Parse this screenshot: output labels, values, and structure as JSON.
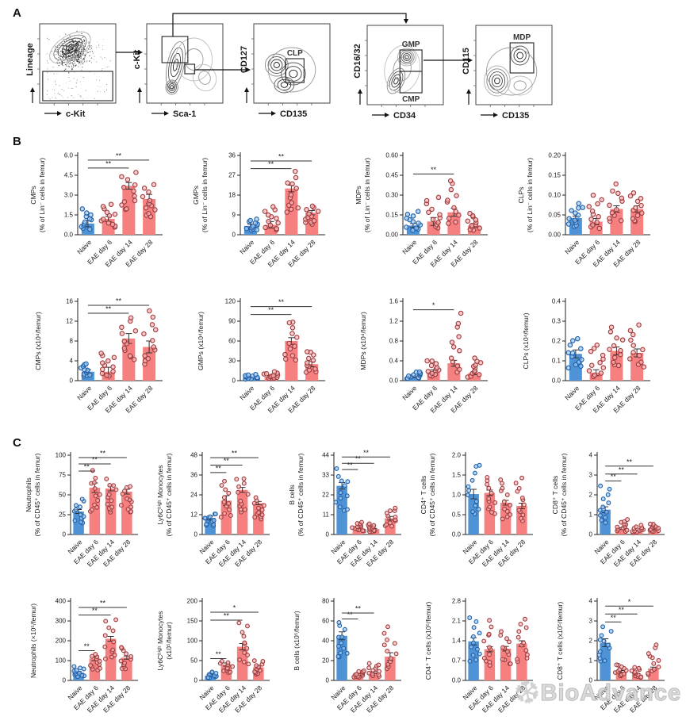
{
  "panels": {
    "a": "A",
    "b": "B",
    "c": "C"
  },
  "watermark": {
    "text": "BioAdvance",
    "flake_icon": "snowflake"
  },
  "flow_panel": {
    "plots": [
      {
        "ylabel": "Lineage",
        "xlabel": "c-Kit",
        "gates": [
          {
            "label": ""
          }
        ]
      },
      {
        "ylabel": "c-Kit",
        "xlabel": "Sca-1",
        "gates": [
          {
            "label": ""
          },
          {
            "label": ""
          }
        ]
      },
      {
        "ylabel": "CD127",
        "xlabel": "CD135",
        "gates": [
          {
            "label": "CLP"
          }
        ]
      },
      {
        "ylabel": "CD16/32",
        "xlabel": "CD34",
        "gates": [
          {
            "label": "GMP"
          },
          {
            "label": "CMP"
          }
        ]
      },
      {
        "ylabel": "CD115",
        "xlabel": "CD135",
        "gates": [
          {
            "label": "MDP"
          }
        ]
      }
    ]
  },
  "chart_data": {
    "type": "bar",
    "categories": [
      "Naive",
      "EAE day 6",
      "EAE day 14",
      "EAE day 28"
    ],
    "colors": {
      "naive_bar": "#4f93d7",
      "naive_dot": "#1f5fa8",
      "naive_dot_fill": "#9cc6ee",
      "eae_bar": "#f67f7f",
      "eae_dot": "#9e3b3e",
      "eae_dot_fill": "#f9b4b4"
    },
    "rows": [
      {
        "panel": "B",
        "size": "b",
        "charts": [
          {
            "name": "cmps-pct",
            "ylabel": [
              "CMPs",
              "(% of Lin⁻ cells in femur)"
            ],
            "ymax": 6,
            "yticks": [
              "0.0",
              "1.5",
              "3.0",
              "4.5",
              "6.0"
            ],
            "means": [
              0.85,
              1.2,
              3.7,
              2.7
            ],
            "errs": [
              0.25,
              0.2,
              0.25,
              0.35
            ],
            "his": [
              1.9,
              2.3,
              4.7,
              3.8
            ],
            "sig": [
              {
                "to": 2,
                "label": "**",
                "y": 5.05
              },
              {
                "to": 3,
                "label": "**",
                "y": 5.65
              }
            ]
          },
          {
            "name": "gmps-pct",
            "ylabel": [
              "GMPs",
              "(% of Lin⁻ cells in femur)"
            ],
            "ymax": 36,
            "yticks": [
              "0",
              "9",
              "18",
              "27",
              "36"
            ],
            "means": [
              4,
              4.5,
              21,
              10
            ],
            "errs": [
              0.8,
              1.5,
              1.5,
              1
            ],
            "his": [
              7,
              13,
              28,
              13
            ],
            "sig": [
              {
                "to": 2,
                "label": "**",
                "y": 30
              },
              {
                "to": 3,
                "label": "**",
                "y": 33.5
              }
            ]
          },
          {
            "name": "mdps-pct",
            "ylabel": [
              "MDPs",
              "(% of Lin⁻ cells in femur)"
            ],
            "ymax": 0.6,
            "yticks": [
              "0.00",
              "0.15",
              "0.30",
              "0.45",
              "0.60"
            ],
            "means": [
              0.07,
              0.1,
              0.17,
              0.07
            ],
            "errs": [
              0.015,
              0.03,
              0.03,
              0.012
            ],
            "his": [
              0.17,
              0.28,
              0.42,
              0.16
            ],
            "sig": [
              {
                "to": 2,
                "label": "**",
                "y": 0.46
              }
            ]
          },
          {
            "name": "clps-pct",
            "ylabel": [
              "CLPs",
              "(% of Lin⁻ cells in femur)"
            ],
            "ymax": 0.2,
            "yticks": [
              "0.00",
              "0.05",
              "0.10",
              "0.15",
              "0.20"
            ],
            "means": [
              0.042,
              0.033,
              0.065,
              0.065
            ],
            "errs": [
              0.005,
              0.008,
              0.008,
              0.008
            ],
            "his": [
              0.078,
              0.095,
              0.125,
              0.11
            ],
            "sig": []
          }
        ]
      },
      {
        "panel": "B",
        "size": "b",
        "charts": [
          {
            "name": "cmps-abs",
            "ylabel": [
              "CMPs (x10⁴/femur)"
            ],
            "ymax": 16,
            "yticks": [
              "0",
              "4",
              "8",
              "12",
              "16"
            ],
            "means": [
              1.8,
              1.8,
              8.5,
              6.8
            ],
            "errs": [
              0.4,
              0.9,
              1.0,
              1.2
            ],
            "his": [
              3.5,
              5.8,
              13,
              13.5
            ],
            "sig": [
              {
                "to": 2,
                "label": "**",
                "y": 13.6
              },
              {
                "to": 3,
                "label": "**",
                "y": 15.2
              }
            ]
          },
          {
            "name": "gmps-abs",
            "ylabel": [
              "GMPs (x10⁴/femur)"
            ],
            "ymax": 120,
            "yticks": [
              "0",
              "30",
              "60",
              "90",
              "120"
            ],
            "means": [
              5,
              6,
              60,
              25
            ],
            "errs": [
              1,
              1.5,
              5,
              4
            ],
            "his": [
              9,
              13,
              92,
              45
            ],
            "sig": [
              {
                "to": 2,
                "label": "**",
                "y": 100
              },
              {
                "to": 3,
                "label": "**",
                "y": 112
              }
            ]
          },
          {
            "name": "mdps-abs",
            "ylabel": [
              "MDPs (x10⁴/femur)"
            ],
            "ymax": 1.6,
            "yticks": [
              "0.0",
              "0.4",
              "0.8",
              "1.2",
              "1.6"
            ],
            "means": [
              0.08,
              0.18,
              0.35,
              0.15
            ],
            "errs": [
              0.02,
              0.04,
              0.06,
              0.03
            ],
            "his": [
              0.18,
              0.42,
              1.3,
              0.45
            ],
            "sig": [
              {
                "to": 2,
                "label": "*",
                "y": 1.43
              }
            ]
          },
          {
            "name": "clps-abs",
            "ylabel": [
              "CLPs (x10⁴/femur)"
            ],
            "ymax": 0.4,
            "yticks": [
              "0.0",
              "0.1",
              "0.2",
              "0.3",
              "0.4"
            ],
            "means": [
              0.135,
              0.04,
              0.15,
              0.14
            ],
            "errs": [
              0.02,
              0.015,
              0.02,
              0.02
            ],
            "his": [
              0.21,
              0.18,
              0.27,
              0.27
            ],
            "sig": []
          }
        ]
      },
      {
        "panel": "C",
        "size": "c",
        "charts": [
          {
            "name": "neutrophils-pct",
            "ylabel": [
              "Neutrophils",
              "(% of CD45⁺ cells in femur)"
            ],
            "ymax": 100,
            "yticks": [
              "0",
              "25",
              "50",
              "75",
              "100"
            ],
            "means": [
              29,
              59,
              58,
              54
            ],
            "errs": [
              2.5,
              6,
              3,
              3
            ],
            "his": [
              45,
              78,
              68,
              62
            ],
            "sig": [
              {
                "to": 1,
                "label": "**",
                "y": 80
              },
              {
                "to": 2,
                "label": "**",
                "y": 89
              },
              {
                "to": 3,
                "label": "**",
                "y": 97
              }
            ]
          },
          {
            "name": "ly6chigh-monocytes-pct",
            "ylabel": [
              "Ly6Cʰⁱᵍʰ Monocytes",
              "(% of CD45⁺ cells in femur)"
            ],
            "ymax": 48,
            "yticks": [
              "0",
              "12",
              "24",
              "36",
              "48"
            ],
            "means": [
              10,
              20.5,
              27,
              19
            ],
            "errs": [
              1.2,
              3,
              1.5,
              1
            ],
            "his": [
              13,
              33,
              35,
              22
            ],
            "sig": [
              {
                "to": 1,
                "label": "**",
                "y": 37.5
              },
              {
                "to": 2,
                "label": "**",
                "y": 42
              },
              {
                "to": 3,
                "label": "**",
                "y": 46.5
              }
            ]
          },
          {
            "name": "b-cells-pct",
            "ylabel": [
              "B cells",
              "(% of CD45⁺ cells in femur)"
            ],
            "ymax": 44,
            "yticks": [
              "0",
              "11",
              "22",
              "33",
              "44"
            ],
            "means": [
              27,
              4,
              3,
              9
            ],
            "errs": [
              1.8,
              0.5,
              0.4,
              1
            ],
            "his": [
              36,
              7,
              6,
              15
            ],
            "sig": [
              {
                "to": 1,
                "label": "**",
                "y": 36
              },
              {
                "to": 2,
                "label": "**",
                "y": 39.5
              },
              {
                "to": 3,
                "label": "**",
                "y": 43
              }
            ]
          },
          {
            "name": "cd4-t-cells-pct",
            "ylabel": [
              "CD4⁺ T cells",
              "(% of CD45⁺ cells in femur)"
            ],
            "ymax": 2,
            "yticks": [
              "0.0",
              "0.5",
              "1.0",
              "1.5",
              "2.0"
            ],
            "means": [
              1.02,
              1.05,
              0.8,
              0.72
            ],
            "errs": [
              0.12,
              0.07,
              0.06,
              0.07
            ],
            "his": [
              1.8,
              1.45,
              1.4,
              1.4
            ],
            "sig": []
          },
          {
            "name": "cd8-t-cells-pct",
            "ylabel": [
              "CD8⁺ T cells",
              "(% of CD45⁺ cells in femur)"
            ],
            "ymax": 4,
            "yticks": [
              "0",
              "1",
              "2",
              "3",
              "4"
            ],
            "means": [
              1.25,
              0.3,
              0.15,
              0.3
            ],
            "errs": [
              0.15,
              0.04,
              0.03,
              0.04
            ],
            "his": [
              2.4,
              0.75,
              0.45,
              0.55
            ],
            "sig": [
              {
                "to": 1,
                "label": "**",
                "y": 2.7
              },
              {
                "to": 2,
                "label": "**",
                "y": 3.05
              },
              {
                "to": 3,
                "label": "**",
                "y": 3.45
              }
            ]
          }
        ]
      },
      {
        "panel": "C",
        "size": "c",
        "charts": [
          {
            "name": "neutrophils-abs",
            "ylabel": [
              "Neutrophils (×10⁵/femur)"
            ],
            "ymax": 400,
            "yticks": [
              "0",
              "100",
              "200",
              "300",
              "400"
            ],
            "means": [
              40,
              110,
              210,
              115
            ],
            "errs": [
              5,
              10,
              12,
              8
            ],
            "his": [
              70,
              135,
              310,
              175
            ],
            "sig": [
              {
                "to": 1,
                "label": "**",
                "y": 150
              },
              {
                "to": 2,
                "label": "**",
                "y": 330
              },
              {
                "to": 3,
                "label": "**",
                "y": 368
              }
            ]
          },
          {
            "name": "ly6chigh-monocytes-abs",
            "ylabel": [
              "Ly6Cʰⁱᵍʰ Monocytes",
              "(x10⁵/femur)"
            ],
            "ymax": 200,
            "yticks": [
              "0",
              "50",
              "100",
              "150",
              "200"
            ],
            "means": [
              12,
              40,
              85,
              33
            ],
            "errs": [
              2,
              4,
              8,
              4
            ],
            "his": [
              22,
              48,
              145,
              50
            ],
            "sig": [
              {
                "to": 1,
                "label": "**",
                "y": 55
              },
              {
                "to": 2,
                "label": "**",
                "y": 152
              },
              {
                "to": 3,
                "label": "*",
                "y": 172
              }
            ]
          },
          {
            "name": "b-cells-abs",
            "ylabel": [
              "B cells (x10⁵/femur)"
            ],
            "ymax": 80,
            "yticks": [
              "0",
              "20",
              "40",
              "60",
              "80"
            ],
            "means": [
              45,
              6,
              8,
              24
            ],
            "errs": [
              4,
              1,
              1,
              4
            ],
            "his": [
              58,
              10,
              18,
              52
            ],
            "sig": [
              {
                "to": 1,
                "label": "**",
                "y": 62
              },
              {
                "to": 2,
                "label": "**",
                "y": 68
              }
            ]
          },
          {
            "name": "cd4-t-cells-abs",
            "ylabel": [
              "CD4⁺ T cells (x10⁵/femur)"
            ],
            "ymax": 2.8,
            "yticks": [
              "0.0",
              "0.7",
              "1.4",
              "2.1",
              "2.8"
            ],
            "means": [
              1.38,
              1.1,
              1.12,
              1.3
            ],
            "errs": [
              0.13,
              0.09,
              0.08,
              0.1
            ],
            "his": [
              2.15,
              2.05,
              1.75,
              2.25
            ],
            "sig": []
          },
          {
            "name": "cd8-t-cells-abs",
            "ylabel": [
              "CD8⁺ T cells (x10⁵/femur)"
            ],
            "ymax": 4,
            "yticks": [
              "0",
              "1",
              "2",
              "3",
              "4"
            ],
            "means": [
              1.9,
              0.45,
              0.3,
              0.6
            ],
            "errs": [
              0.2,
              0.05,
              0.04,
              0.07
            ],
            "his": [
              2.7,
              0.8,
              0.65,
              1.75
            ],
            "sig": [
              {
                "to": 1,
                "label": "**",
                "y": 2.95
              },
              {
                "to": 2,
                "label": "**",
                "y": 3.35
              },
              {
                "to": 3,
                "label": "*",
                "y": 3.75
              }
            ]
          }
        ]
      }
    ]
  }
}
